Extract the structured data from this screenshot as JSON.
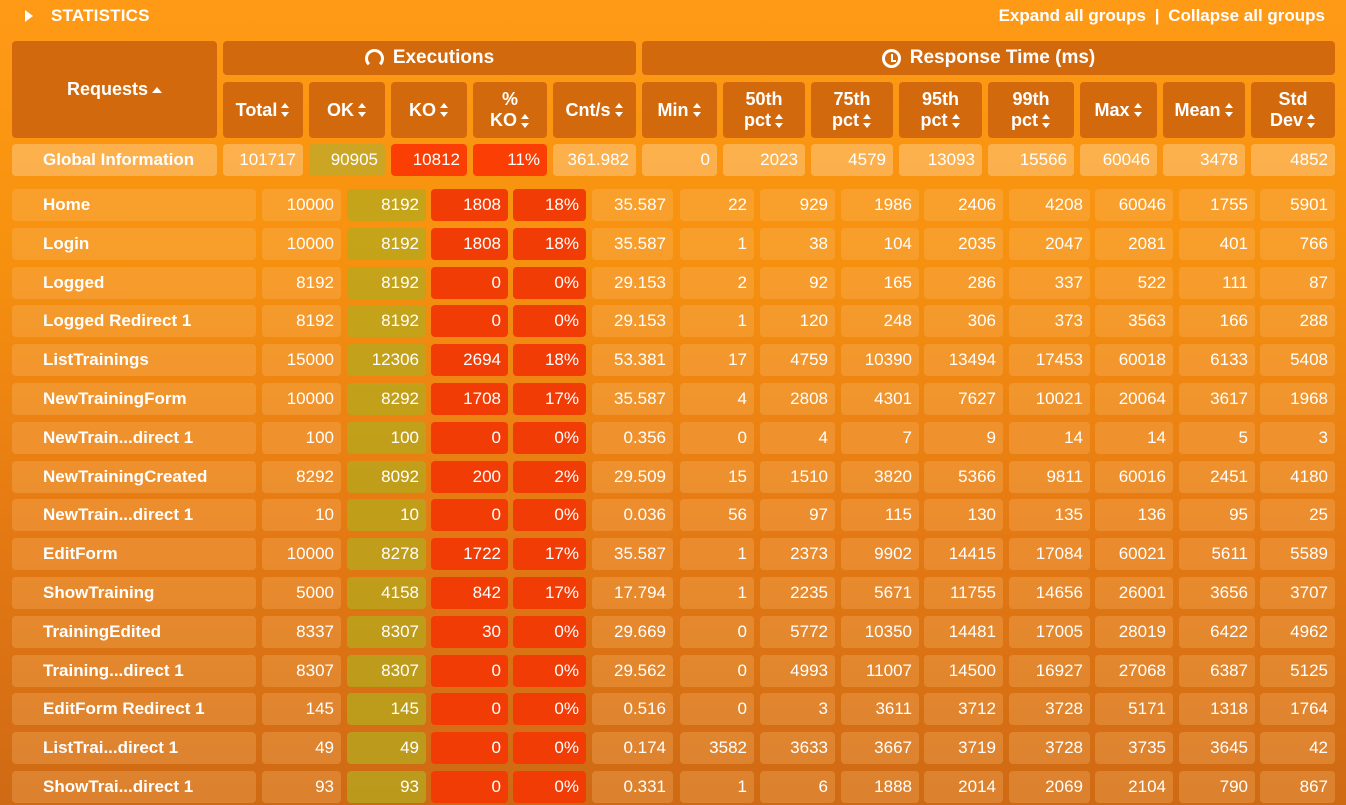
{
  "topbar": {
    "title": "STATISTICS",
    "expand_label": "Expand all groups",
    "separator": "|",
    "collapse_label": "Collapse all groups"
  },
  "header": {
    "requests": "Requests",
    "executions": "Executions",
    "response_time": "Response Time (ms)",
    "columns": {
      "total": "Total",
      "ok": "OK",
      "ko": "KO",
      "pct_ko_1": "%",
      "pct_ko_2": "KO",
      "cnt": "Cnt/s",
      "min": "Min",
      "p50_1": "50th",
      "p50_2": "pct",
      "p75_1": "75th",
      "p75_2": "pct",
      "p95_1": "95th",
      "p95_2": "pct",
      "p99_1": "99th",
      "p99_2": "pct",
      "max": "Max",
      "mean": "Mean",
      "std_1": "Std",
      "std_2": "Dev"
    }
  },
  "global": [
    "Global Information",
    "101717",
    "90905",
    "10812",
    "11%",
    "361.982",
    "0",
    "2023",
    "4579",
    "13093",
    "15566",
    "60046",
    "3478",
    "4852"
  ],
  "rows": [
    [
      "Home",
      "10000",
      "8192",
      "1808",
      "18%",
      "35.587",
      "22",
      "929",
      "1986",
      "2406",
      "4208",
      "60046",
      "1755",
      "5901"
    ],
    [
      "Login",
      "10000",
      "8192",
      "1808",
      "18%",
      "35.587",
      "1",
      "38",
      "104",
      "2035",
      "2047",
      "2081",
      "401",
      "766"
    ],
    [
      "Logged",
      "8192",
      "8192",
      "0",
      "0%",
      "29.153",
      "2",
      "92",
      "165",
      "286",
      "337",
      "522",
      "111",
      "87"
    ],
    [
      "Logged Redirect 1",
      "8192",
      "8192",
      "0",
      "0%",
      "29.153",
      "1",
      "120",
      "248",
      "306",
      "373",
      "3563",
      "166",
      "288"
    ],
    [
      "ListTrainings",
      "15000",
      "12306",
      "2694",
      "18%",
      "53.381",
      "17",
      "4759",
      "10390",
      "13494",
      "17453",
      "60018",
      "6133",
      "5408"
    ],
    [
      "NewTrainingForm",
      "10000",
      "8292",
      "1708",
      "17%",
      "35.587",
      "4",
      "2808",
      "4301",
      "7627",
      "10021",
      "20064",
      "3617",
      "1968"
    ],
    [
      "NewTrain...direct 1",
      "100",
      "100",
      "0",
      "0%",
      "0.356",
      "0",
      "4",
      "7",
      "9",
      "14",
      "14",
      "5",
      "3"
    ],
    [
      "NewTrainingCreated",
      "8292",
      "8092",
      "200",
      "2%",
      "29.509",
      "15",
      "1510",
      "3820",
      "5366",
      "9811",
      "60016",
      "2451",
      "4180"
    ],
    [
      "NewTrain...direct 1",
      "10",
      "10",
      "0",
      "0%",
      "0.036",
      "56",
      "97",
      "115",
      "130",
      "135",
      "136",
      "95",
      "25"
    ],
    [
      "EditForm",
      "10000",
      "8278",
      "1722",
      "17%",
      "35.587",
      "1",
      "2373",
      "9902",
      "14415",
      "17084",
      "60021",
      "5611",
      "5589"
    ],
    [
      "ShowTraining",
      "5000",
      "4158",
      "842",
      "17%",
      "17.794",
      "1",
      "2235",
      "5671",
      "11755",
      "14656",
      "26001",
      "3656",
      "3707"
    ],
    [
      "TrainingEdited",
      "8337",
      "8307",
      "30",
      "0%",
      "29.669",
      "0",
      "5772",
      "10350",
      "14481",
      "17005",
      "28019",
      "6422",
      "4962"
    ],
    [
      "Training...direct 1",
      "8307",
      "8307",
      "0",
      "0%",
      "29.562",
      "0",
      "4993",
      "11007",
      "14500",
      "16927",
      "27068",
      "6387",
      "5125"
    ],
    [
      "EditForm Redirect 1",
      "145",
      "145",
      "0",
      "0%",
      "0.516",
      "0",
      "3",
      "3611",
      "3712",
      "3728",
      "5171",
      "1318",
      "1764"
    ],
    [
      "ListTrai...direct 1",
      "49",
      "49",
      "0",
      "0%",
      "0.174",
      "3582",
      "3633",
      "3667",
      "3719",
      "3728",
      "3735",
      "3645",
      "42"
    ],
    [
      "ShowTrai...direct 1",
      "93",
      "93",
      "0",
      "0%",
      "0.331",
      "1",
      "6",
      "1888",
      "2014",
      "2069",
      "2104",
      "790",
      "867"
    ]
  ]
}
